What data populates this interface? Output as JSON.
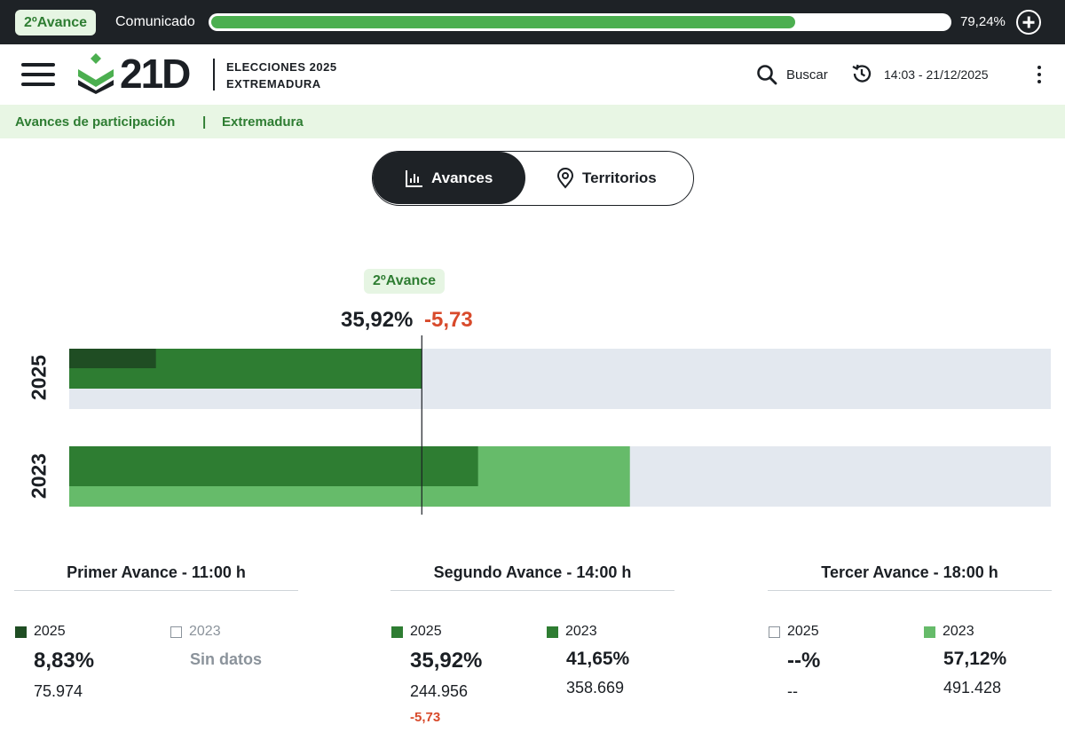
{
  "topbar": {
    "badge": "2ºAvance",
    "status": "Comunicado",
    "progress_pct": 79.24,
    "progress_label": "79,24%"
  },
  "header": {
    "logo_text": "21D",
    "subtitle_line1": "ELECCIONES 2025",
    "subtitle_line2": "EXTREMADURA",
    "search_label": "Buscar",
    "time_prefix": "14:03 - ",
    "time_date": "21/12/2025"
  },
  "breadcrumb": {
    "item1": "Avances de participación",
    "separator": "|",
    "item2": "Extremadura"
  },
  "toggle": {
    "active": "Avances",
    "inactive": "Territorios"
  },
  "chart_data": {
    "type": "bar",
    "orientation": "horizontal",
    "categories": [
      "2025",
      "2023"
    ],
    "series": [
      {
        "name": "Primer Avance",
        "values": [
          8.83,
          null
        ]
      },
      {
        "name": "Segundo Avance",
        "values": [
          35.92,
          41.65
        ]
      },
      {
        "name": "Tercer Avance",
        "values": [
          null,
          57.12
        ]
      }
    ],
    "xlim": [
      0,
      100
    ],
    "marker": {
      "label": "2ºAvance",
      "value": 35.92,
      "value_label": "35,92%",
      "delta_label": "-5,73"
    }
  },
  "cards": [
    {
      "title": "Primer Avance - 11:00 h",
      "col_a": {
        "year": "2025",
        "pct": "8,83%",
        "votes": "75.974"
      },
      "col_b": {
        "year": "2023",
        "nodata": "Sin datos"
      }
    },
    {
      "title": "Segundo Avance - 14:00 h",
      "col_a": {
        "year": "2025",
        "pct": "35,92%",
        "votes": "244.956",
        "delta": "-5,73"
      },
      "col_b": {
        "year": "2023",
        "pct": "41,65%",
        "votes": "358.669"
      }
    },
    {
      "title": "Tercer Avance - 18:00 h",
      "col_a": {
        "year": "2025",
        "pct": "--%",
        "votes": "--"
      },
      "col_b": {
        "year": "2023",
        "pct": "57,12%",
        "votes": "491.428"
      }
    }
  ],
  "colors": {
    "dark_green": "#1f4d23",
    "mid_green": "#2e7d32",
    "light_green": "#66bb6a",
    "track": "#e3e8ef",
    "negative": "#d84a2b"
  }
}
